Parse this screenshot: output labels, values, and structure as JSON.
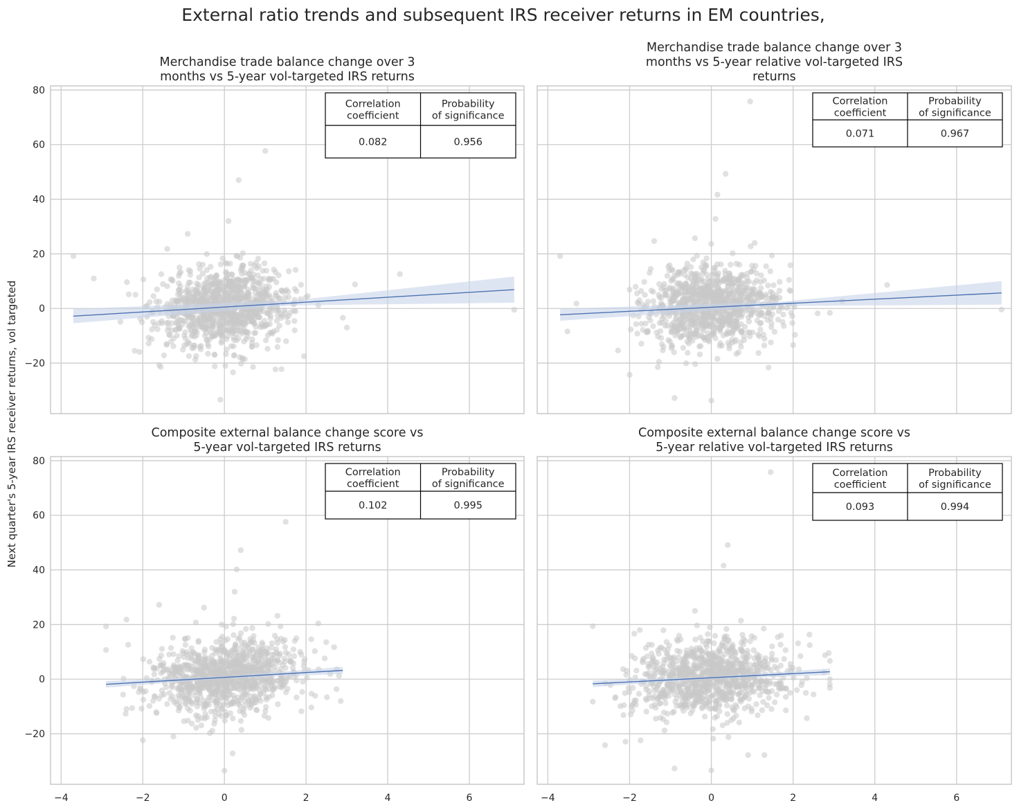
{
  "figure": {
    "title": "External ratio trends and subsequent IRS receiver returns in EM countries,",
    "ylabel": "Next quarter's 5-year IRS receiver returns, vol targeted",
    "colors": {
      "points": "#c8c8c8",
      "line": "#4c72b0",
      "band": "#c8d4ea",
      "grid": "#cccccc",
      "spine": "#cccccc",
      "table_border": "#000000"
    }
  },
  "chart_data": [
    {
      "type": "scatter",
      "panel": "top-left",
      "title_lines": [
        "Merchandise trade balance change over 3",
        "months vs 5-year vol-targeted IRS returns"
      ],
      "xlabel": "",
      "ylabel": "",
      "xlim": [
        -4.26,
        7.34
      ],
      "ylim": [
        -38.5,
        81.5
      ],
      "xticks": [
        -4,
        -2,
        0,
        2,
        4,
        6
      ],
      "yticks": [
        -20,
        0,
        20,
        40,
        60,
        80
      ],
      "grid": true,
      "regression": {
        "x": [
          -3.7,
          7.1
        ],
        "y": [
          -2.8,
          6.9
        ],
        "ci_half_width_ends": [
          2.6,
          4.8
        ]
      },
      "table": {
        "headers": [
          [
            "Correlation",
            "coefficient"
          ],
          [
            "Probability",
            "of significance"
          ]
        ],
        "values": [
          "0.082",
          "0.956"
        ]
      },
      "notable_points": [
        [
          -3.7,
          19.2
        ],
        [
          -3.2,
          11
        ],
        [
          7.1,
          -0.5
        ],
        [
          3.2,
          8.8
        ],
        [
          4.3,
          12.6
        ],
        [
          3.0,
          -7
        ],
        [
          2.9,
          -3.4
        ],
        [
          1.0,
          57.7
        ],
        [
          0.35,
          47
        ],
        [
          0.1,
          32
        ],
        [
          -0.1,
          -33.4
        ],
        [
          -0.9,
          27.3
        ],
        [
          -1.4,
          21.8
        ],
        [
          -2.2,
          -15.5
        ],
        [
          1.4,
          -22.2
        ],
        [
          1.25,
          -22.3
        ],
        [
          1.95,
          -17.5
        ],
        [
          2.3,
          1.2
        ]
      ],
      "cloud": {
        "n": 1000,
        "x_center": 0.0,
        "x_sd": 0.8,
        "y_center": 0.6,
        "y_sd": 7.2,
        "slope": 0.9
      }
    },
    {
      "type": "scatter",
      "panel": "top-right",
      "title_lines": [
        "Merchandise trade balance change over 3",
        "months vs 5-year relative vol-targeted IRS",
        "returns"
      ],
      "xlabel": "",
      "ylabel": "",
      "xlim": [
        -4.26,
        7.34
      ],
      "ylim": [
        -38.5,
        81.5
      ],
      "xticks": [
        -4,
        -2,
        0,
        2,
        4,
        6
      ],
      "yticks": [
        -20,
        0,
        20,
        40,
        60,
        80
      ],
      "grid": true,
      "regression": {
        "x": [
          -3.7,
          7.1
        ],
        "y": [
          -2.3,
          5.7
        ],
        "ci_half_width_ends": [
          2.2,
          4.3
        ]
      },
      "table": {
        "headers": [
          [
            "Correlation",
            "coefficient"
          ],
          [
            "Probability",
            "of significance"
          ]
        ],
        "values": [
          "0.071",
          "0.967"
        ]
      },
      "notable_points": [
        [
          -3.7,
          19.2
        ],
        [
          -3.3,
          1.8
        ],
        [
          7.1,
          -0.4
        ],
        [
          4.3,
          8.6
        ],
        [
          2.9,
          -1.6
        ],
        [
          3.2,
          2.7
        ],
        [
          2.6,
          -1.8
        ],
        [
          0.95,
          75.8
        ],
        [
          0.35,
          49.3
        ],
        [
          0.15,
          41.7
        ],
        [
          0.1,
          32.8
        ],
        [
          0.0,
          -33.7
        ],
        [
          -0.9,
          -32.8
        ],
        [
          -2.0,
          -24.3
        ],
        [
          1.4,
          -21.6
        ],
        [
          2.0,
          -13.4
        ],
        [
          -0.4,
          25.7
        ],
        [
          -1.4,
          24.7
        ]
      ],
      "cloud": {
        "n": 1000,
        "x_center": 0.0,
        "x_sd": 0.8,
        "y_center": 0.6,
        "y_sd": 7.2,
        "slope": 0.7
      }
    },
    {
      "type": "scatter",
      "panel": "bottom-left",
      "title_lines": [
        "Composite external balance change score vs",
        "5-year vol-targeted IRS returns"
      ],
      "xlabel": "",
      "ylabel": "",
      "xlim": [
        -4.26,
        7.34
      ],
      "ylim": [
        -38.5,
        81.5
      ],
      "xticks": [
        -4,
        -2,
        0,
        2,
        4,
        6
      ],
      "yticks": [
        -20,
        0,
        20,
        40,
        60,
        80
      ],
      "grid": true,
      "regression": {
        "x": [
          -2.9,
          2.9
        ],
        "y": [
          -1.9,
          3.2
        ],
        "ci_half_width_ends": [
          1.2,
          1.3
        ]
      },
      "table": {
        "headers": [
          [
            "Correlation",
            "coefficient"
          ],
          [
            "Probability",
            "of significance"
          ]
        ],
        "values": [
          "0.102",
          "0.995"
        ]
      },
      "notable_points": [
        [
          1.5,
          57.6
        ],
        [
          0.4,
          47.2
        ],
        [
          0.3,
          40.2
        ],
        [
          0.25,
          32
        ],
        [
          0.0,
          -33.5
        ],
        [
          -2.9,
          19.3
        ],
        [
          -2.4,
          21.8
        ],
        [
          -1.6,
          27.2
        ],
        [
          -0.5,
          26.2
        ],
        [
          -2.0,
          -22.4
        ],
        [
          -1.25,
          -21.0
        ],
        [
          0.2,
          -27.2
        ],
        [
          2.3,
          20.4
        ],
        [
          2.75,
          3.6
        ],
        [
          2.85,
          -8.0
        ],
        [
          1.3,
          23.2
        ]
      ],
      "cloud": {
        "n": 1000,
        "x_center": 0.0,
        "x_sd": 0.95,
        "y_center": 0.9,
        "y_sd": 7.0,
        "slope": 0.9,
        "x_clip": [
          -2.9,
          2.9
        ]
      }
    },
    {
      "type": "scatter",
      "panel": "bottom-right",
      "title_lines": [
        "Composite external balance change score vs",
        "5-year relative vol-targeted IRS returns"
      ],
      "xlabel": "",
      "ylabel": "",
      "xlim": [
        -4.26,
        7.34
      ],
      "ylim": [
        -38.5,
        81.5
      ],
      "xticks": [
        -4,
        -2,
        0,
        2,
        4,
        6
      ],
      "yticks": [
        -20,
        0,
        20,
        40,
        60,
        80
      ],
      "grid": true,
      "regression": {
        "x": [
          -2.9,
          2.9
        ],
        "y": [
          -1.7,
          2.7
        ],
        "ci_half_width_ends": [
          1.2,
          1.2
        ]
      },
      "table": {
        "headers": [
          [
            "Correlation",
            "coefficient"
          ],
          [
            "Probability",
            "of significance"
          ]
        ],
        "values": [
          "0.093",
          "0.994"
        ]
      },
      "notable_points": [
        [
          1.45,
          75.8
        ],
        [
          0.4,
          49.1
        ],
        [
          0.3,
          41.6
        ],
        [
          0.0,
          -33.4
        ],
        [
          -2.9,
          19.4
        ],
        [
          -0.9,
          -32.7
        ],
        [
          -2.6,
          -24.2
        ],
        [
          -2.1,
          -22.9
        ],
        [
          1.3,
          -27.8
        ],
        [
          0.9,
          -27.8
        ],
        [
          -0.4,
          25.0
        ],
        [
          2.4,
          16.3
        ],
        [
          2.9,
          -3.2
        ],
        [
          2.5,
          -5.6
        ]
      ],
      "cloud": {
        "n": 1000,
        "x_center": 0.0,
        "x_sd": 0.95,
        "y_center": 0.7,
        "y_sd": 7.0,
        "slope": 0.75,
        "x_clip": [
          -2.9,
          2.9
        ]
      }
    }
  ]
}
